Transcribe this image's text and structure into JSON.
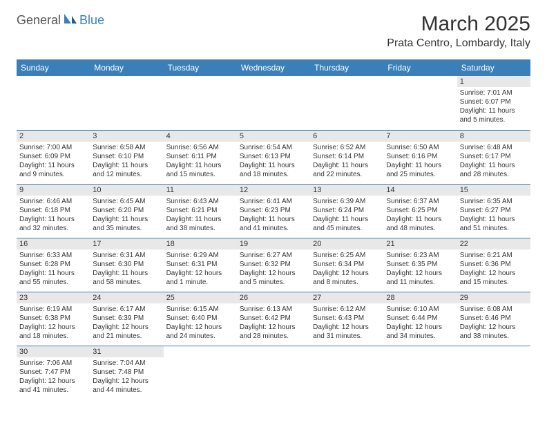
{
  "logo": {
    "part1": "General",
    "part2": "Blue"
  },
  "title": "March 2025",
  "location": "Prata Centro, Lombardy, Italy",
  "colors": {
    "accent": "#3a7fb8",
    "day_bg": "#e8e8e8",
    "text": "#333333",
    "bg": "#ffffff"
  },
  "weekdays": [
    "Sunday",
    "Monday",
    "Tuesday",
    "Wednesday",
    "Thursday",
    "Friday",
    "Saturday"
  ],
  "weeks": [
    [
      null,
      null,
      null,
      null,
      null,
      null,
      {
        "d": "1",
        "sr": "Sunrise: 7:01 AM",
        "ss": "Sunset: 6:07 PM",
        "dl1": "Daylight: 11 hours",
        "dl2": "and 5 minutes."
      }
    ],
    [
      {
        "d": "2",
        "sr": "Sunrise: 7:00 AM",
        "ss": "Sunset: 6:09 PM",
        "dl1": "Daylight: 11 hours",
        "dl2": "and 9 minutes."
      },
      {
        "d": "3",
        "sr": "Sunrise: 6:58 AM",
        "ss": "Sunset: 6:10 PM",
        "dl1": "Daylight: 11 hours",
        "dl2": "and 12 minutes."
      },
      {
        "d": "4",
        "sr": "Sunrise: 6:56 AM",
        "ss": "Sunset: 6:11 PM",
        "dl1": "Daylight: 11 hours",
        "dl2": "and 15 minutes."
      },
      {
        "d": "5",
        "sr": "Sunrise: 6:54 AM",
        "ss": "Sunset: 6:13 PM",
        "dl1": "Daylight: 11 hours",
        "dl2": "and 18 minutes."
      },
      {
        "d": "6",
        "sr": "Sunrise: 6:52 AM",
        "ss": "Sunset: 6:14 PM",
        "dl1": "Daylight: 11 hours",
        "dl2": "and 22 minutes."
      },
      {
        "d": "7",
        "sr": "Sunrise: 6:50 AM",
        "ss": "Sunset: 6:16 PM",
        "dl1": "Daylight: 11 hours",
        "dl2": "and 25 minutes."
      },
      {
        "d": "8",
        "sr": "Sunrise: 6:48 AM",
        "ss": "Sunset: 6:17 PM",
        "dl1": "Daylight: 11 hours",
        "dl2": "and 28 minutes."
      }
    ],
    [
      {
        "d": "9",
        "sr": "Sunrise: 6:46 AM",
        "ss": "Sunset: 6:18 PM",
        "dl1": "Daylight: 11 hours",
        "dl2": "and 32 minutes."
      },
      {
        "d": "10",
        "sr": "Sunrise: 6:45 AM",
        "ss": "Sunset: 6:20 PM",
        "dl1": "Daylight: 11 hours",
        "dl2": "and 35 minutes."
      },
      {
        "d": "11",
        "sr": "Sunrise: 6:43 AM",
        "ss": "Sunset: 6:21 PM",
        "dl1": "Daylight: 11 hours",
        "dl2": "and 38 minutes."
      },
      {
        "d": "12",
        "sr": "Sunrise: 6:41 AM",
        "ss": "Sunset: 6:23 PM",
        "dl1": "Daylight: 11 hours",
        "dl2": "and 41 minutes."
      },
      {
        "d": "13",
        "sr": "Sunrise: 6:39 AM",
        "ss": "Sunset: 6:24 PM",
        "dl1": "Daylight: 11 hours",
        "dl2": "and 45 minutes."
      },
      {
        "d": "14",
        "sr": "Sunrise: 6:37 AM",
        "ss": "Sunset: 6:25 PM",
        "dl1": "Daylight: 11 hours",
        "dl2": "and 48 minutes."
      },
      {
        "d": "15",
        "sr": "Sunrise: 6:35 AM",
        "ss": "Sunset: 6:27 PM",
        "dl1": "Daylight: 11 hours",
        "dl2": "and 51 minutes."
      }
    ],
    [
      {
        "d": "16",
        "sr": "Sunrise: 6:33 AM",
        "ss": "Sunset: 6:28 PM",
        "dl1": "Daylight: 11 hours",
        "dl2": "and 55 minutes."
      },
      {
        "d": "17",
        "sr": "Sunrise: 6:31 AM",
        "ss": "Sunset: 6:30 PM",
        "dl1": "Daylight: 11 hours",
        "dl2": "and 58 minutes."
      },
      {
        "d": "18",
        "sr": "Sunrise: 6:29 AM",
        "ss": "Sunset: 6:31 PM",
        "dl1": "Daylight: 12 hours",
        "dl2": "and 1 minute."
      },
      {
        "d": "19",
        "sr": "Sunrise: 6:27 AM",
        "ss": "Sunset: 6:32 PM",
        "dl1": "Daylight: 12 hours",
        "dl2": "and 5 minutes."
      },
      {
        "d": "20",
        "sr": "Sunrise: 6:25 AM",
        "ss": "Sunset: 6:34 PM",
        "dl1": "Daylight: 12 hours",
        "dl2": "and 8 minutes."
      },
      {
        "d": "21",
        "sr": "Sunrise: 6:23 AM",
        "ss": "Sunset: 6:35 PM",
        "dl1": "Daylight: 12 hours",
        "dl2": "and 11 minutes."
      },
      {
        "d": "22",
        "sr": "Sunrise: 6:21 AM",
        "ss": "Sunset: 6:36 PM",
        "dl1": "Daylight: 12 hours",
        "dl2": "and 15 minutes."
      }
    ],
    [
      {
        "d": "23",
        "sr": "Sunrise: 6:19 AM",
        "ss": "Sunset: 6:38 PM",
        "dl1": "Daylight: 12 hours",
        "dl2": "and 18 minutes."
      },
      {
        "d": "24",
        "sr": "Sunrise: 6:17 AM",
        "ss": "Sunset: 6:39 PM",
        "dl1": "Daylight: 12 hours",
        "dl2": "and 21 minutes."
      },
      {
        "d": "25",
        "sr": "Sunrise: 6:15 AM",
        "ss": "Sunset: 6:40 PM",
        "dl1": "Daylight: 12 hours",
        "dl2": "and 24 minutes."
      },
      {
        "d": "26",
        "sr": "Sunrise: 6:13 AM",
        "ss": "Sunset: 6:42 PM",
        "dl1": "Daylight: 12 hours",
        "dl2": "and 28 minutes."
      },
      {
        "d": "27",
        "sr": "Sunrise: 6:12 AM",
        "ss": "Sunset: 6:43 PM",
        "dl1": "Daylight: 12 hours",
        "dl2": "and 31 minutes."
      },
      {
        "d": "28",
        "sr": "Sunrise: 6:10 AM",
        "ss": "Sunset: 6:44 PM",
        "dl1": "Daylight: 12 hours",
        "dl2": "and 34 minutes."
      },
      {
        "d": "29",
        "sr": "Sunrise: 6:08 AM",
        "ss": "Sunset: 6:46 PM",
        "dl1": "Daylight: 12 hours",
        "dl2": "and 38 minutes."
      }
    ],
    [
      {
        "d": "30",
        "sr": "Sunrise: 7:06 AM",
        "ss": "Sunset: 7:47 PM",
        "dl1": "Daylight: 12 hours",
        "dl2": "and 41 minutes."
      },
      {
        "d": "31",
        "sr": "Sunrise: 7:04 AM",
        "ss": "Sunset: 7:48 PM",
        "dl1": "Daylight: 12 hours",
        "dl2": "and 44 minutes."
      },
      null,
      null,
      null,
      null,
      null
    ]
  ]
}
